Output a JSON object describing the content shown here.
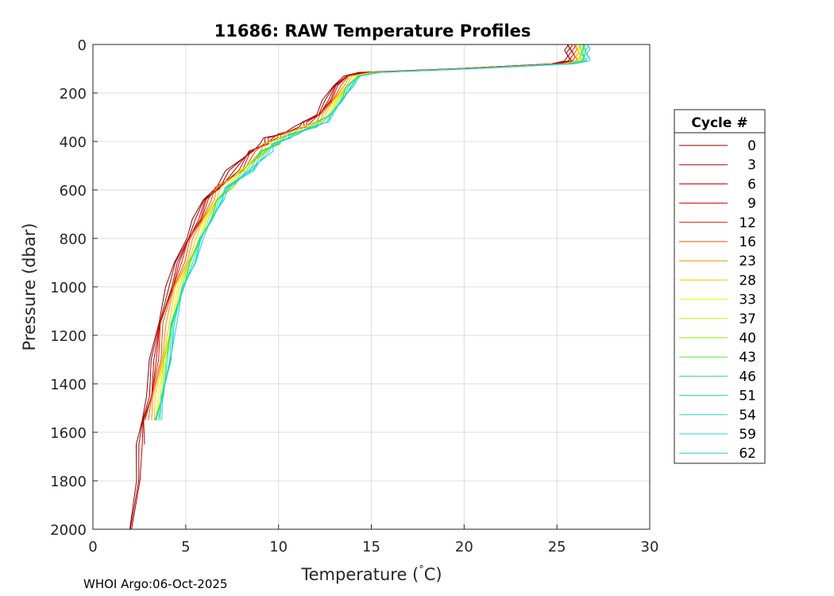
{
  "chart_data": {
    "type": "line",
    "title": "11686: RAW Temperature Profiles",
    "xlabel": "Temperature (",
    "xlabel_degree": "°",
    "xlabel_unit": "C)",
    "ylabel": "Pressure (dbar)",
    "xlim": [
      0,
      30
    ],
    "ylim": [
      0,
      2000
    ],
    "y_reversed": true,
    "grid": true,
    "x_ticks": [
      0,
      5,
      10,
      15,
      20,
      25,
      30
    ],
    "y_ticks": [
      0,
      200,
      400,
      600,
      800,
      1000,
      1200,
      1400,
      1600,
      1800,
      2000
    ],
    "legend": {
      "title": "Cycle #",
      "placement": "outside-right",
      "entries": [
        {
          "label": "0",
          "color": "#8b0000"
        },
        {
          "label": "3",
          "color": "#a00000"
        },
        {
          "label": "6",
          "color": "#b40000"
        },
        {
          "label": "9",
          "color": "#c80000"
        },
        {
          "label": "12",
          "color": "#dc1400"
        },
        {
          "label": "16",
          "color": "#e65000"
        },
        {
          "label": "23",
          "color": "#f08c00"
        },
        {
          "label": "28",
          "color": "#f5c800"
        },
        {
          "label": "33",
          "color": "#f0f000"
        },
        {
          "label": "37",
          "color": "#c8f000"
        },
        {
          "label": "40",
          "color": "#96e600"
        },
        {
          "label": "43",
          "color": "#64e632"
        },
        {
          "label": "46",
          "color": "#3cdc64"
        },
        {
          "label": "51",
          "color": "#1edc96"
        },
        {
          "label": "54",
          "color": "#14e6be"
        },
        {
          "label": "59",
          "color": "#14dce6"
        },
        {
          "label": "62",
          "color": "#28c8d2"
        }
      ]
    },
    "series": [
      {
        "name": "0",
        "color": "#8b0000",
        "t_offset": -0.55,
        "surface_t": 25.5,
        "max_pressure": 2000
      },
      {
        "name": "3",
        "color": "#a00000",
        "t_offset": -0.45,
        "surface_t": 25.6,
        "max_pressure": 2000
      },
      {
        "name": "6",
        "color": "#b40000",
        "t_offset": -0.35,
        "surface_t": 25.7,
        "max_pressure": 2000
      },
      {
        "name": "9",
        "color": "#c80000",
        "t_offset": -0.3,
        "surface_t": 25.8,
        "max_pressure": 1700
      },
      {
        "name": "12",
        "color": "#dc1400",
        "t_offset": -0.25,
        "surface_t": 25.9,
        "max_pressure": 1600
      },
      {
        "name": "16",
        "color": "#e65000",
        "t_offset": -0.15,
        "surface_t": 26.0,
        "max_pressure": 1550
      },
      {
        "name": "23",
        "color": "#f08c00",
        "t_offset": -0.05,
        "surface_t": 26.1,
        "max_pressure": 1550
      },
      {
        "name": "28",
        "color": "#f5c800",
        "t_offset": 0.05,
        "surface_t": 26.2,
        "max_pressure": 1550
      },
      {
        "name": "33",
        "color": "#f0f000",
        "t_offset": 0.15,
        "surface_t": 26.2,
        "max_pressure": 1550
      },
      {
        "name": "37",
        "color": "#c8f000",
        "t_offset": 0.2,
        "surface_t": 26.3,
        "max_pressure": 1550
      },
      {
        "name": "40",
        "color": "#96e600",
        "t_offset": 0.25,
        "surface_t": 26.3,
        "max_pressure": 1550
      },
      {
        "name": "43",
        "color": "#64e632",
        "t_offset": 0.3,
        "surface_t": 26.4,
        "max_pressure": 1550
      },
      {
        "name": "46",
        "color": "#3cdc64",
        "t_offset": 0.3,
        "surface_t": 26.4,
        "max_pressure": 1550
      },
      {
        "name": "51",
        "color": "#1edc96",
        "t_offset": 0.35,
        "surface_t": 26.5,
        "max_pressure": 1550
      },
      {
        "name": "54",
        "color": "#14e6be",
        "t_offset": 0.4,
        "surface_t": 26.5,
        "max_pressure": 1550
      },
      {
        "name": "59",
        "color": "#14dce6",
        "t_offset": 0.4,
        "surface_t": 26.6,
        "max_pressure": 1550
      },
      {
        "name": "62",
        "color": "#28c8d2",
        "t_offset": 0.45,
        "surface_t": 26.7,
        "max_pressure": 1550
      }
    ],
    "base_profile": [
      [
        24.5,
        80
      ],
      [
        20.0,
        100
      ],
      [
        15.0,
        115
      ],
      [
        14.0,
        130
      ],
      [
        13.5,
        170
      ],
      [
        13.0,
        230
      ],
      [
        12.5,
        290
      ],
      [
        12.0,
        320
      ],
      [
        11.5,
        340
      ],
      [
        10.5,
        370
      ],
      [
        10.0,
        385
      ],
      [
        9.5,
        410
      ],
      [
        9.0,
        440
      ],
      [
        8.0,
        520
      ],
      [
        7.0,
        590
      ],
      [
        6.5,
        640
      ],
      [
        6.0,
        720
      ],
      [
        5.5,
        800
      ],
      [
        5.0,
        900
      ],
      [
        4.5,
        1000
      ],
      [
        4.0,
        1150
      ],
      [
        3.7,
        1300
      ],
      [
        3.4,
        1450
      ],
      [
        3.15,
        1550
      ],
      [
        3.0,
        1650
      ],
      [
        2.8,
        1800
      ],
      [
        2.55,
        2000
      ]
    ]
  },
  "footer": {
    "credit": "WHOI Argo:06-Oct-2025"
  }
}
